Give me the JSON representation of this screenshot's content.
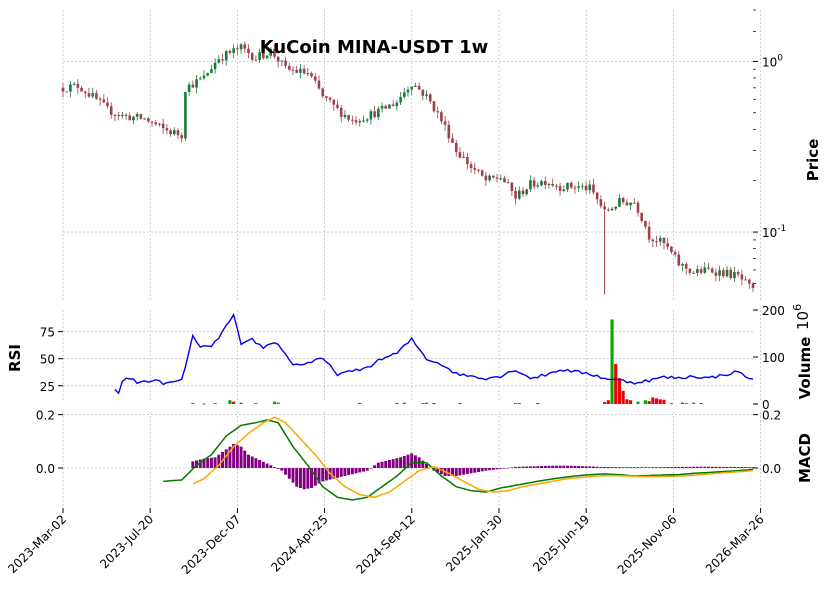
{
  "chart_data": {
    "type": "candlestick",
    "title": "KuCoin MINA-USDT 1w",
    "x_tick_labels": [
      "2023-Mar-02",
      "2023-Jul-20",
      "2023-Dec-07",
      "2024-Apr-25",
      "2024-Sep-12",
      "2025-Jan-30",
      "2025-Jun-19",
      "2025-Nov-06",
      "2026-Mar-26"
    ],
    "price_panel": {
      "ylabel": "Price",
      "yscale": "log",
      "ylim": [
        0.04,
        2.0
      ],
      "y_tick_labels": [
        "10^0",
        "10^-1"
      ],
      "up_color": "#1a7a3a",
      "down_color": "#a0404a",
      "close_anchors": [
        [
          0,
          0.7
        ],
        [
          4,
          0.72
        ],
        [
          8,
          0.62
        ],
        [
          12,
          0.52
        ],
        [
          16,
          0.48
        ],
        [
          22,
          0.46
        ],
        [
          27,
          0.4
        ],
        [
          32,
          0.37
        ],
        [
          33,
          0.7
        ],
        [
          38,
          0.8
        ],
        [
          42,
          1.05
        ],
        [
          48,
          1.2
        ],
        [
          52,
          1.05
        ],
        [
          56,
          1.15
        ],
        [
          60,
          0.9
        ],
        [
          66,
          0.85
        ],
        [
          70,
          0.62
        ],
        [
          74,
          0.52
        ],
        [
          78,
          0.45
        ],
        [
          82,
          0.48
        ],
        [
          86,
          0.52
        ],
        [
          90,
          0.58
        ],
        [
          94,
          0.75
        ],
        [
          98,
          0.62
        ],
        [
          102,
          0.45
        ],
        [
          106,
          0.3
        ],
        [
          110,
          0.24
        ],
        [
          114,
          0.2
        ],
        [
          118,
          0.21
        ],
        [
          122,
          0.16
        ],
        [
          126,
          0.19
        ],
        [
          130,
          0.2
        ],
        [
          134,
          0.185
        ],
        [
          138,
          0.185
        ],
        [
          142,
          0.18
        ],
        [
          146,
          0.13
        ],
        [
          150,
          0.15
        ],
        [
          154,
          0.15
        ],
        [
          158,
          0.095
        ],
        [
          162,
          0.085
        ],
        [
          166,
          0.065
        ],
        [
          170,
          0.058
        ],
        [
          174,
          0.06
        ],
        [
          178,
          0.058
        ],
        [
          182,
          0.055
        ],
        [
          186,
          0.045
        ]
      ],
      "n_candles": 187
    },
    "rsi_panel": {
      "ylabel": "RSI",
      "ylim": [
        10,
        95
      ],
      "y_tick_labels": [
        "25",
        "50",
        "75"
      ],
      "line_color": "#0000ee",
      "anchors": [
        [
          14,
          22
        ],
        [
          15,
          18
        ],
        [
          16,
          30
        ],
        [
          18,
          32
        ],
        [
          20,
          28
        ],
        [
          24,
          30
        ],
        [
          28,
          27
        ],
        [
          32,
          30
        ],
        [
          35,
          70
        ],
        [
          37,
          62
        ],
        [
          40,
          60
        ],
        [
          44,
          80
        ],
        [
          46,
          90
        ],
        [
          48,
          62
        ],
        [
          51,
          68
        ],
        [
          54,
          60
        ],
        [
          57,
          66
        ],
        [
          60,
          55
        ],
        [
          62,
          44
        ],
        [
          66,
          46
        ],
        [
          70,
          50
        ],
        [
          74,
          36
        ],
        [
          78,
          38
        ],
        [
          82,
          42
        ],
        [
          86,
          50
        ],
        [
          90,
          55
        ],
        [
          94,
          68
        ],
        [
          98,
          50
        ],
        [
          102,
          45
        ],
        [
          106,
          36
        ],
        [
          110,
          34
        ],
        [
          114,
          32
        ],
        [
          118,
          34
        ],
        [
          122,
          40
        ],
        [
          126,
          32
        ],
        [
          130,
          35
        ],
        [
          134,
          40
        ],
        [
          138,
          38
        ],
        [
          142,
          36
        ],
        [
          146,
          32
        ],
        [
          150,
          30
        ],
        [
          154,
          28
        ],
        [
          158,
          30
        ],
        [
          162,
          33
        ],
        [
          166,
          32
        ],
        [
          170,
          34
        ],
        [
          174,
          32
        ],
        [
          178,
          35
        ],
        [
          182,
          38
        ],
        [
          186,
          30
        ]
      ]
    },
    "volume_panel": {
      "ylabel": "Volume",
      "y_multiplier": "10^6",
      "ylim": [
        0,
        200
      ],
      "y_tick_labels": [
        "0",
        "100",
        "200"
      ],
      "up_color": "#00aa00",
      "down_color": "#ee0000",
      "bars": [
        [
          35,
          2,
          "up"
        ],
        [
          38,
          1,
          "up"
        ],
        [
          41,
          2,
          "up"
        ],
        [
          45,
          8,
          "up"
        ],
        [
          46,
          5,
          "down"
        ],
        [
          48,
          3,
          "up"
        ],
        [
          52,
          2,
          "up"
        ],
        [
          57,
          5,
          "up"
        ],
        [
          58,
          3,
          "up"
        ],
        [
          80,
          2,
          "down"
        ],
        [
          90,
          2,
          "down"
        ],
        [
          92,
          3,
          "up"
        ],
        [
          97,
          2,
          "up"
        ],
        [
          98,
          3,
          "up"
        ],
        [
          100,
          2,
          "down"
        ],
        [
          107,
          2,
          "down"
        ],
        [
          122,
          2,
          "up"
        ],
        [
          123,
          2,
          "up"
        ],
        [
          128,
          2,
          "down"
        ],
        [
          146,
          4,
          "down"
        ],
        [
          147,
          8,
          "down"
        ],
        [
          148,
          180,
          "up"
        ],
        [
          149,
          85,
          "down"
        ],
        [
          150,
          55,
          "down"
        ],
        [
          151,
          28,
          "down"
        ],
        [
          152,
          10,
          "down"
        ],
        [
          153,
          8,
          "down"
        ],
        [
          155,
          5,
          "up"
        ],
        [
          157,
          8,
          "up"
        ],
        [
          158,
          6,
          "down"
        ],
        [
          159,
          14,
          "down"
        ],
        [
          160,
          12,
          "down"
        ],
        [
          161,
          10,
          "down"
        ],
        [
          162,
          9,
          "down"
        ],
        [
          164,
          2,
          "up"
        ],
        [
          167,
          3,
          "up"
        ],
        [
          168,
          2,
          "up"
        ],
        [
          170,
          3,
          "up"
        ],
        [
          172,
          2,
          "down"
        ]
      ]
    },
    "macd_panel": {
      "ylabel": "MACD",
      "ylim": [
        -0.15,
        0.21
      ],
      "y_tick_labels": [
        "0.0",
        "0.2"
      ],
      "macd_color": "#007a00",
      "signal_color": "#ffa500",
      "hist_color": "#800080",
      "macd_anchors": [
        [
          27,
          -0.05
        ],
        [
          32,
          -0.045
        ],
        [
          36,
          0.01
        ],
        [
          40,
          0.05
        ],
        [
          44,
          0.12
        ],
        [
          48,
          0.16
        ],
        [
          52,
          0.17
        ],
        [
          55,
          0.18
        ],
        [
          58,
          0.17
        ],
        [
          62,
          0.08
        ],
        [
          66,
          0.01
        ],
        [
          70,
          -0.07
        ],
        [
          74,
          -0.11
        ],
        [
          78,
          -0.12
        ],
        [
          82,
          -0.11
        ],
        [
          86,
          -0.07
        ],
        [
          90,
          -0.03
        ],
        [
          94,
          0.02
        ],
        [
          98,
          0.02
        ],
        [
          102,
          -0.03
        ],
        [
          106,
          -0.07
        ],
        [
          110,
          -0.085
        ],
        [
          114,
          -0.09
        ],
        [
          118,
          -0.075
        ],
        [
          122,
          -0.065
        ],
        [
          126,
          -0.055
        ],
        [
          130,
          -0.045
        ],
        [
          134,
          -0.037
        ],
        [
          138,
          -0.03
        ],
        [
          142,
          -0.025
        ],
        [
          146,
          -0.022
        ],
        [
          150,
          -0.025
        ],
        [
          154,
          -0.03
        ],
        [
          158,
          -0.028
        ],
        [
          162,
          -0.026
        ],
        [
          166,
          -0.025
        ],
        [
          170,
          -0.02
        ],
        [
          174,
          -0.017
        ],
        [
          178,
          -0.013
        ],
        [
          182,
          -0.01
        ],
        [
          186,
          -0.005
        ]
      ],
      "signal_anchors": [
        [
          35,
          -0.06
        ],
        [
          38,
          -0.04
        ],
        [
          42,
          0.01
        ],
        [
          46,
          0.08
        ],
        [
          50,
          0.13
        ],
        [
          54,
          0.17
        ],
        [
          57,
          0.19
        ],
        [
          60,
          0.17
        ],
        [
          64,
          0.11
        ],
        [
          68,
          0.05
        ],
        [
          72,
          -0.02
        ],
        [
          76,
          -0.07
        ],
        [
          80,
          -0.1
        ],
        [
          84,
          -0.11
        ],
        [
          88,
          -0.09
        ],
        [
          92,
          -0.05
        ],
        [
          96,
          -0.01
        ],
        [
          100,
          0.005
        ],
        [
          104,
          -0.02
        ],
        [
          108,
          -0.05
        ],
        [
          112,
          -0.08
        ],
        [
          116,
          -0.09
        ],
        [
          120,
          -0.085
        ],
        [
          124,
          -0.07
        ],
        [
          128,
          -0.06
        ],
        [
          132,
          -0.05
        ],
        [
          136,
          -0.04
        ],
        [
          140,
          -0.035
        ],
        [
          144,
          -0.03
        ],
        [
          148,
          -0.028
        ],
        [
          152,
          -0.03
        ],
        [
          156,
          -0.032
        ],
        [
          160,
          -0.032
        ],
        [
          164,
          -0.031
        ],
        [
          168,
          -0.029
        ],
        [
          172,
          -0.025
        ],
        [
          176,
          -0.02
        ],
        [
          180,
          -0.016
        ],
        [
          186,
          -0.01
        ]
      ],
      "hist_anchors": [
        [
          35,
          0.025
        ],
        [
          38,
          0.035
        ],
        [
          41,
          0.04
        ],
        [
          44,
          0.07
        ],
        [
          46,
          0.09
        ],
        [
          48,
          0.08
        ],
        [
          50,
          0.05
        ],
        [
          53,
          0.03
        ],
        [
          56,
          0.01
        ],
        [
          59,
          -0.01
        ],
        [
          61,
          -0.04
        ],
        [
          63,
          -0.07
        ],
        [
          65,
          -0.08
        ],
        [
          67,
          -0.075
        ],
        [
          70,
          -0.05
        ],
        [
          73,
          -0.04
        ],
        [
          76,
          -0.03
        ],
        [
          79,
          -0.02
        ],
        [
          82,
          -0.01
        ],
        [
          85,
          0.02
        ],
        [
          88,
          0.03
        ],
        [
          91,
          0.04
        ],
        [
          93,
          0.05
        ],
        [
          94,
          0.055
        ],
        [
          96,
          0.04
        ],
        [
          98,
          0.015
        ],
        [
          100,
          -0.01
        ],
        [
          103,
          -0.03
        ],
        [
          106,
          -0.03
        ],
        [
          110,
          -0.02
        ],
        [
          114,
          -0.01
        ],
        [
          118,
          -0.003
        ],
        [
          122,
          0.004
        ],
        [
          126,
          0.006
        ],
        [
          130,
          0.008
        ],
        [
          134,
          0.009
        ],
        [
          138,
          0.008
        ],
        [
          142,
          0.006
        ],
        [
          145,
          0.004
        ],
        [
          150,
          0.003
        ],
        [
          156,
          0.003
        ],
        [
          160,
          0.003
        ],
        [
          166,
          0.004
        ],
        [
          172,
          0.005
        ],
        [
          180,
          0.004
        ],
        [
          186,
          0.003
        ]
      ]
    }
  }
}
